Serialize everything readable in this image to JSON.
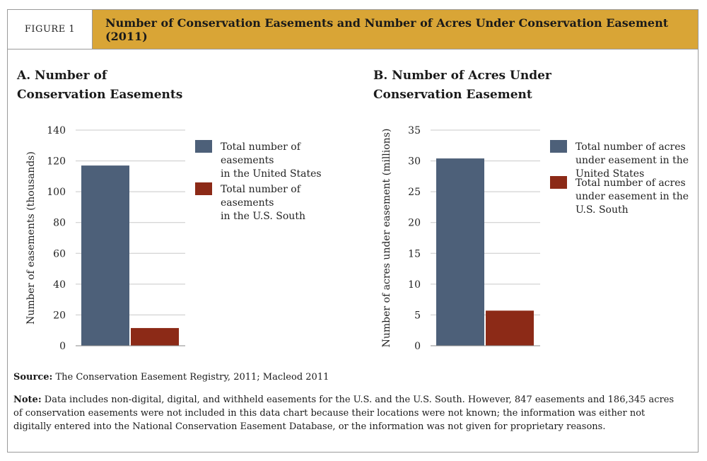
{
  "header": {
    "figure_label": "FIGURE 1",
    "title": "Number of Conservation Easements and Number of Acres Under Conservation Easement (2011)"
  },
  "colors": {
    "us": "#4d6079",
    "south": "#8c2a17",
    "header_bg": "#d9a536"
  },
  "chart_data": [
    {
      "type": "bar",
      "title": "A. Number of Conservation Easements",
      "ylabel": "Number of easements (thousands)",
      "xlabel": "",
      "ylim": [
        0,
        140
      ],
      "yticks": [
        0,
        20,
        40,
        60,
        80,
        100,
        120,
        140
      ],
      "legend_position": "right",
      "series": [
        {
          "name": "Total number of easements in the United States",
          "legend_lines": [
            "Total number of",
            "easements",
            "in the United States"
          ],
          "values": [
            117
          ]
        },
        {
          "name": "Total number of easements in the U.S. South",
          "legend_lines": [
            "Total number of",
            "easements",
            "in the U.S. South"
          ],
          "values": [
            11.5
          ]
        }
      ]
    },
    {
      "type": "bar",
      "title": "B. Number of Acres Under Conservation Easement",
      "ylabel": "Number of acres under easement (millions)",
      "xlabel": "",
      "ylim": [
        0,
        35
      ],
      "yticks": [
        0,
        5,
        10,
        15,
        20,
        25,
        30,
        35
      ],
      "legend_position": "right",
      "series": [
        {
          "name": "Total number of acres under easement in the United States",
          "legend_lines": [
            "Total number of acres",
            "under easement in the",
            "United States"
          ],
          "values": [
            30.4
          ]
        },
        {
          "name": "Total number of acres under easement in the U.S. South",
          "legend_lines": [
            "Total number of acres",
            "under easement in the",
            "U.S. South"
          ],
          "values": [
            5.7
          ]
        }
      ]
    }
  ],
  "panels": {
    "a_title_line1": "A. Number of",
    "a_title_line2": "Conservation Easements",
    "b_title_line1": "B. Number of Acres Under",
    "b_title_line2": "Conservation Easement"
  },
  "footer": {
    "source_label": "Source:",
    "source_text": " The Conservation Easement Registry, 2011; Macleod 2011",
    "note_label": "Note:",
    "note_text": " Data includes non-digital, digital, and withheld easements for the U.S. and the U.S. South. However, 847 easements and 186,345 acres of conservation easements were not included in this data chart because their locations were not known; the information was either not digitally entered into the National Conservation Easement Database, or the information was not given for proprietary reasons."
  }
}
